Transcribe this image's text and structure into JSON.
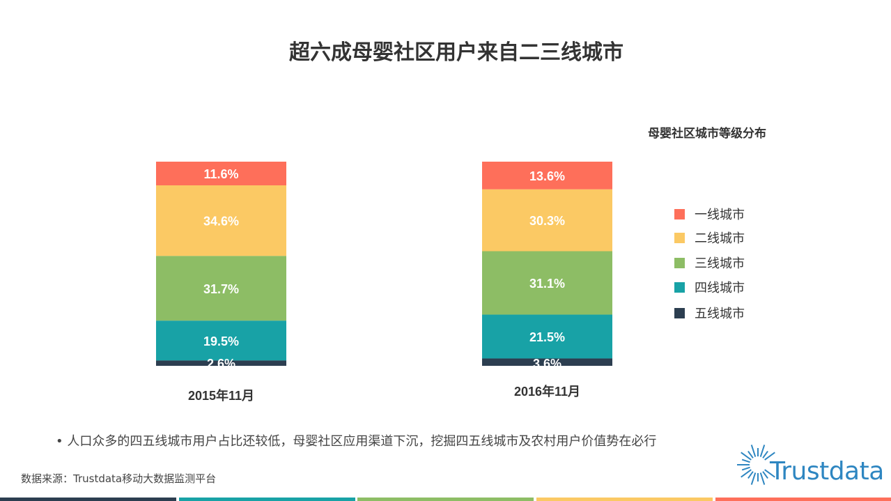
{
  "title": "超六成母婴社区用户来自二三线城市",
  "note": "人口众多的四五线城市用户占比还较低，母婴社区应用渠道下沉，挖掘四五线城市及农村用户价值势在必行",
  "source": "数据来源：Trustdata移动大数据监测平台",
  "logo_text": "Trustdata",
  "chart_data": {
    "type": "bar",
    "stacked": true,
    "legend_title": "母婴社区城市等级分布",
    "legend_position": "right",
    "categories": [
      "2015年11月",
      "2016年11月"
    ],
    "series": [
      {
        "name": "一线城市",
        "color": "#fe6f5a",
        "values": [
          11.6,
          13.6
        ]
      },
      {
        "name": "二线城市",
        "color": "#fbc964",
        "values": [
          34.6,
          30.3
        ]
      },
      {
        "name": "三线城市",
        "color": "#8dbd65",
        "values": [
          31.7,
          31.1
        ]
      },
      {
        "name": "四线城市",
        "color": "#18a2a6",
        "values": [
          19.5,
          21.5
        ]
      },
      {
        "name": "五线城市",
        "color": "#2c3e50",
        "values": [
          2.6,
          3.6
        ]
      }
    ],
    "unit": "%",
    "grid": false
  },
  "stripe_colors": [
    "#2c3e50",
    "#18a2a6",
    "#8dbd65",
    "#fbc964",
    "#fe6f5a"
  ]
}
